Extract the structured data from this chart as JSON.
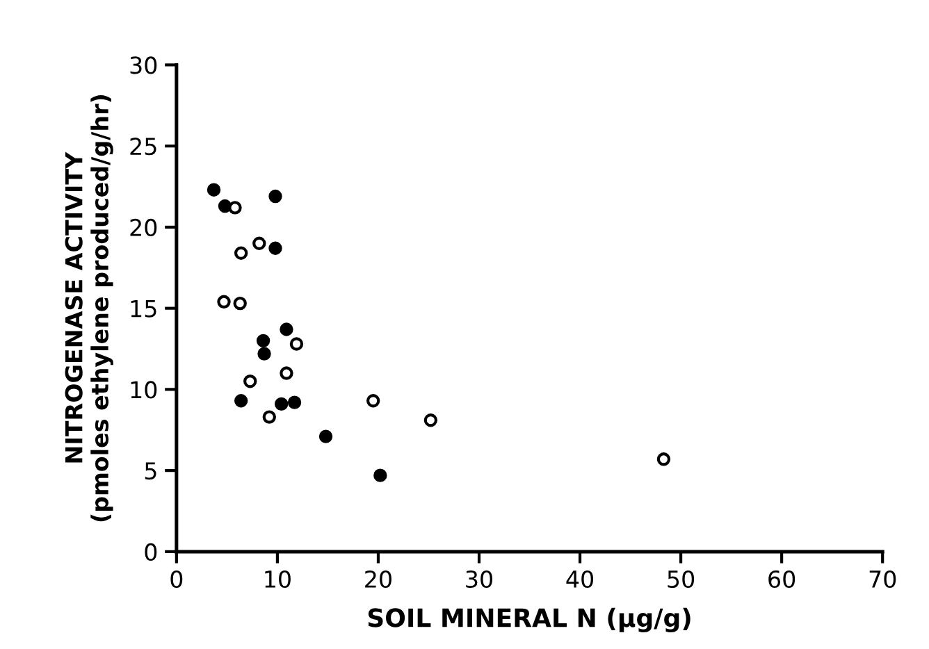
{
  "chart_data": {
    "type": "scatter",
    "xlabel": "SOIL MINERAL N (μg/g)",
    "ylabel": "NITROGENASE ACTIVITY\n(pmoles ethylene produced/g/hr)",
    "marker": "circle",
    "grid": false,
    "legend": false,
    "xlim": [
      0,
      70
    ],
    "xticks": [
      0,
      10,
      20,
      30,
      40,
      50,
      60,
      70
    ],
    "ylim": [
      0,
      30
    ],
    "yticks": [
      0,
      5,
      10,
      15,
      20,
      25,
      30
    ],
    "series": [
      {
        "color": "#000000",
        "x": [
          3.7,
          4.8,
          9.8,
          9.8,
          10.9,
          8.6,
          8.7,
          6.4,
          10.4,
          11.7,
          14.8,
          20.2
        ],
        "values": [
          22.3,
          21.3,
          21.9,
          18.7,
          13.7,
          13.0,
          12.2,
          9.3,
          9.1,
          9.2,
          7.1,
          4.7
        ]
      },
      {
        "color": "#000000",
        "x": [
          5.8,
          8.2,
          6.4,
          4.7,
          6.3,
          11.9,
          10.9,
          7.3,
          9.2,
          19.5,
          25.2,
          48.3
        ],
        "values": [
          21.2,
          19.0,
          18.4,
          15.4,
          15.3,
          12.8,
          11.0,
          10.5,
          8.3,
          9.3,
          8.1,
          5.7
        ]
      }
    ]
  }
}
